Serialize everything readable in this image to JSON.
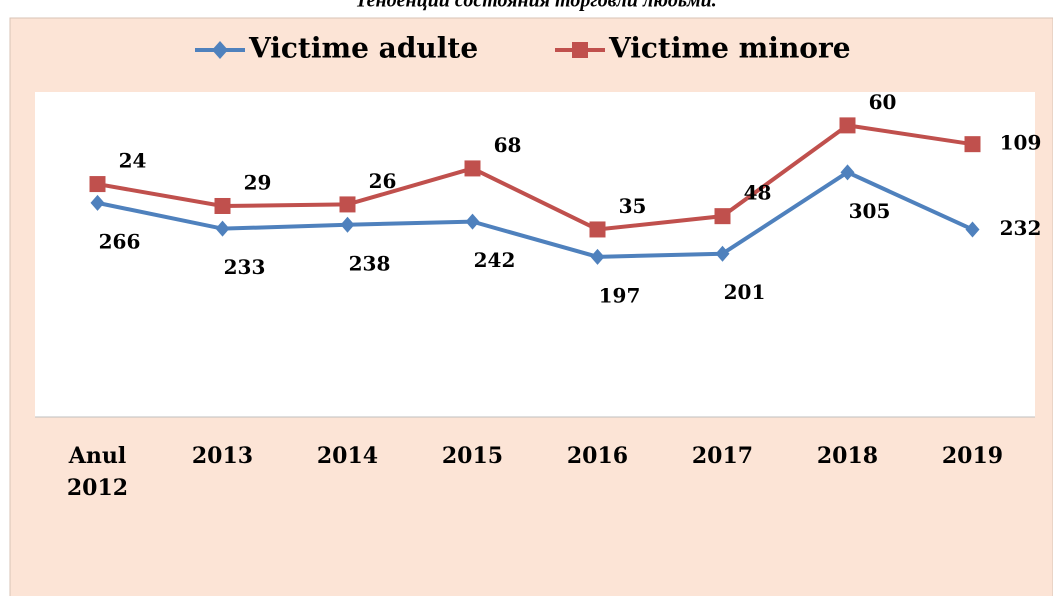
{
  "chart_data": {
    "type": "line",
    "stacked": true,
    "title": "Тенденции состояния торговли людьми.",
    "categories": [
      "Anul 2012",
      "2013",
      "2014",
      "2015",
      "2016",
      "2017",
      "2018",
      "2019"
    ],
    "series": [
      {
        "name": "Victime adulte",
        "color": "#4f81bd",
        "marker": "diamond",
        "values": [
          266,
          233,
          238,
          242,
          197,
          201,
          305,
          232
        ]
      },
      {
        "name": "Victime minore",
        "color": "#c0504d",
        "marker": "square",
        "values": [
          24,
          29,
          26,
          68,
          35,
          48,
          60,
          109
        ]
      }
    ],
    "ylim": [
      0,
      400
    ],
    "legend": "top",
    "grid": false
  }
}
